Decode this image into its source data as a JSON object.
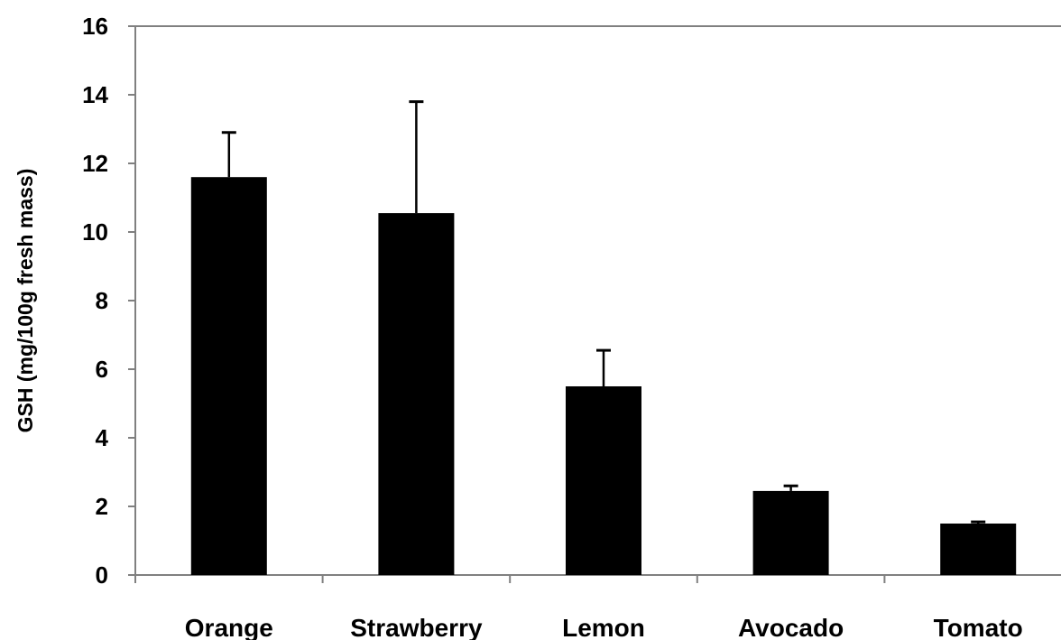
{
  "chart_data": {
    "type": "bar",
    "title": "",
    "xlabel": "",
    "ylabel": "GSH (mg/100g fresh mass)",
    "categories": [
      "Orange",
      "Strawberry",
      "Lemon",
      "Avocado",
      "Tomato"
    ],
    "values": [
      11.6,
      10.55,
      5.5,
      2.45,
      1.5
    ],
    "errors": [
      1.3,
      3.25,
      1.05,
      0.15,
      0.05
    ],
    "ylim": [
      0,
      16
    ],
    "yticks": [
      "0",
      "2",
      "4",
      "6",
      "8",
      "10",
      "12",
      "14",
      "16"
    ],
    "grid": false,
    "legend": "none",
    "bar_color": "#000000"
  }
}
